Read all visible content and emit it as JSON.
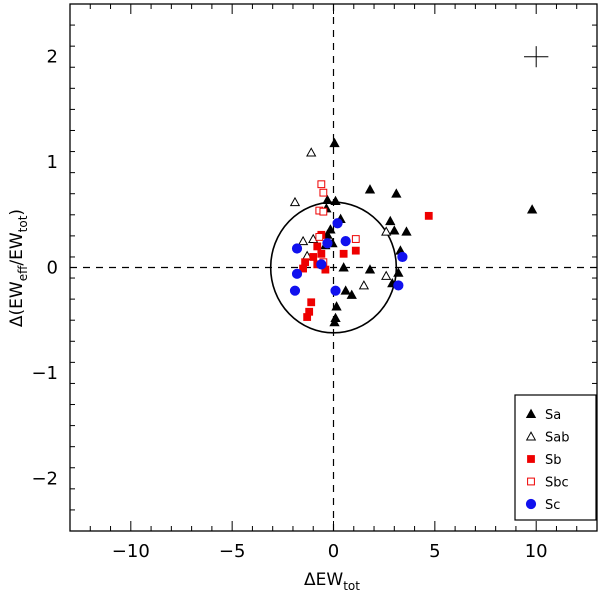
{
  "chart_data": {
    "type": "scatter",
    "xlabel": "ΔEW",
    "xlabel_sub": "tot",
    "ylabel_parts": [
      "Δ(EW",
      "eff",
      "/EW",
      "tot",
      ")"
    ],
    "xlim": [
      -13,
      13
    ],
    "ylim": [
      -2.5,
      2.5
    ],
    "xticks": [
      -10,
      -5,
      0,
      5,
      10
    ],
    "xtick_labels": [
      "−10",
      "−5",
      "0",
      "5",
      "10"
    ],
    "yticks": [
      -2,
      -1,
      0,
      1,
      2
    ],
    "ytick_labels": [
      "−2",
      "−1",
      "0",
      "1",
      "2"
    ],
    "reference_lines": {
      "x": 0,
      "y": 0,
      "style": "dashed"
    },
    "circle": {
      "center": [
        0,
        0
      ],
      "rx": 3.1,
      "ry": 0.62
    },
    "error_cross": {
      "x": 10,
      "y": 2.0,
      "dx": 0.6,
      "dy": 0.1
    },
    "legend_position": "bottom-right",
    "series": [
      {
        "name": "Sa",
        "marker": "triangle",
        "filled": true,
        "color": "#000000",
        "points": [
          [
            0.05,
            1.18
          ],
          [
            0.1,
            0.63
          ],
          [
            -0.3,
            0.64
          ],
          [
            1.8,
            0.74
          ],
          [
            3.1,
            0.7
          ],
          [
            9.8,
            0.55
          ],
          [
            -0.35,
            0.56
          ],
          [
            0.35,
            0.46
          ],
          [
            2.8,
            0.44
          ],
          [
            3.0,
            0.35
          ],
          [
            3.6,
            0.34
          ],
          [
            -0.15,
            0.36
          ],
          [
            -0.3,
            0.31
          ],
          [
            -0.05,
            0.23
          ],
          [
            -0.4,
            0.21
          ],
          [
            3.3,
            0.16
          ],
          [
            3.2,
            -0.05
          ],
          [
            2.9,
            -0.15
          ],
          [
            0.5,
            0.0
          ],
          [
            1.8,
            -0.02
          ],
          [
            0.6,
            -0.22
          ],
          [
            0.9,
            -0.26
          ],
          [
            0.15,
            -0.37
          ],
          [
            0.1,
            -0.48
          ],
          [
            0.05,
            -0.52
          ]
        ]
      },
      {
        "name": "Sab",
        "marker": "triangle",
        "filled": false,
        "color": "#000000",
        "points": [
          [
            -1.1,
            1.09
          ],
          [
            -1.9,
            0.62
          ],
          [
            -1.0,
            0.27
          ],
          [
            -1.5,
            0.25
          ],
          [
            2.6,
            0.34
          ],
          [
            -1.3,
            0.11
          ],
          [
            2.6,
            -0.08
          ],
          [
            1.5,
            -0.17
          ]
        ]
      },
      {
        "name": "Sb",
        "marker": "square",
        "filled": true,
        "color": "#ee0000",
        "points": [
          [
            4.7,
            0.49
          ],
          [
            -0.6,
            0.31
          ],
          [
            -0.8,
            0.2
          ],
          [
            0.5,
            0.13
          ],
          [
            1.1,
            0.16
          ],
          [
            -0.6,
            0.13
          ],
          [
            -1.0,
            0.1
          ],
          [
            -1.4,
            0.05
          ],
          [
            -0.4,
            -0.02
          ],
          [
            -1.5,
            -0.01
          ],
          [
            -0.8,
            0.03
          ],
          [
            -1.1,
            -0.33
          ],
          [
            -1.2,
            -0.42
          ],
          [
            -1.3,
            -0.47
          ]
        ]
      },
      {
        "name": "Sbc",
        "marker": "square",
        "filled": false,
        "color": "#ee0000",
        "points": [
          [
            -0.6,
            0.79
          ],
          [
            -0.5,
            0.71
          ],
          [
            -0.7,
            0.54
          ],
          [
            -0.5,
            0.53
          ],
          [
            -0.7,
            0.29
          ],
          [
            1.1,
            0.27
          ],
          [
            -0.5,
            0.05
          ]
        ]
      },
      {
        "name": "Sc",
        "marker": "circle",
        "filled": true,
        "color": "#1111ee",
        "points": [
          [
            0.2,
            0.42
          ],
          [
            0.6,
            0.25
          ],
          [
            -1.8,
            0.18
          ],
          [
            -0.3,
            0.23
          ],
          [
            3.4,
            0.1
          ],
          [
            -0.6,
            0.03
          ],
          [
            -1.8,
            -0.06
          ],
          [
            3.2,
            -0.17
          ],
          [
            -1.9,
            -0.22
          ],
          [
            0.1,
            -0.22
          ]
        ]
      }
    ]
  }
}
